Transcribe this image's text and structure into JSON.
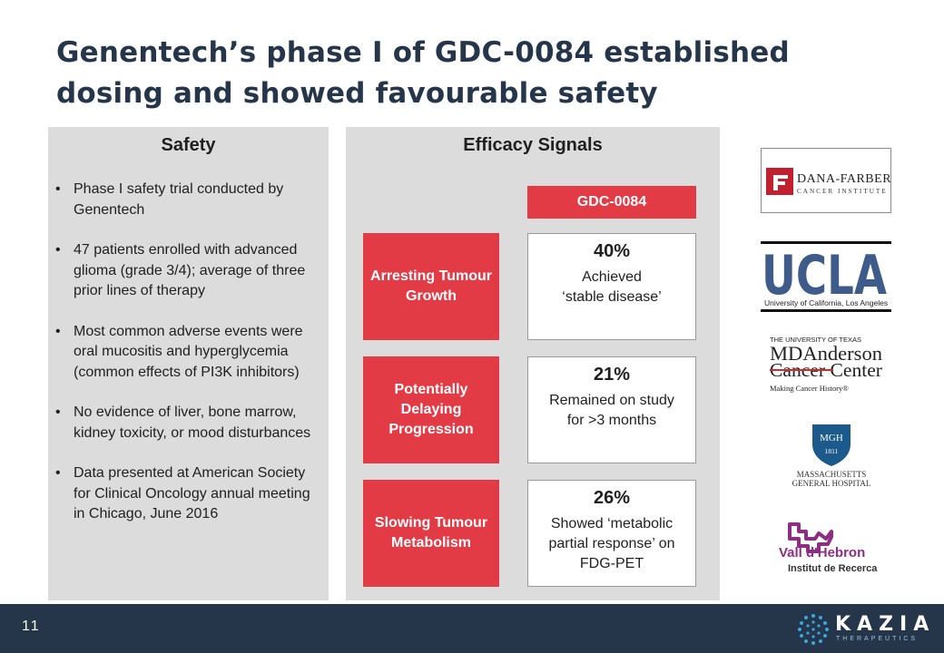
{
  "title": "Genentech’s phase I of GDC-0084 established dosing and showed favourable safety",
  "safety": {
    "heading": "Safety",
    "bullets": [
      "Phase I safety trial conducted by Genentech",
      "47 patients enrolled with advanced glioma (grade 3/4); average of three prior lines of therapy",
      "Most common adverse events were oral mucositis and hyperglycemia (common effects of PI3K inhibitors)",
      "No evidence of liver, bone marrow, kidney toxicity, or mood disturbances",
      "Data presented at American Society for Clinical Oncology annual meeting in Chicago, June 2016"
    ]
  },
  "efficacy": {
    "heading": "Efficacy Signals",
    "drug_label": "GDC-0084",
    "metrics": [
      {
        "label": "Arresting Tumour Growth",
        "value": "40%",
        "description": "Achieved\n‘stable disease’"
      },
      {
        "label": "Potentially Delaying Progression",
        "value": "21%",
        "description": "Remained on study\nfor >3 months"
      },
      {
        "label": "Slowing Tumour Metabolism",
        "value": "26%",
        "description": "Showed ‘metabolic\npartial response’ on\nFDG-PET"
      }
    ]
  },
  "logos": {
    "dana_farber": {
      "name": "DANA-FARBER",
      "sub": "CANCER INSTITUTE"
    },
    "ucla": {
      "name": "UCLA",
      "sub": "University of California, Los Angeles"
    },
    "md_anderson": {
      "top": "THE UNIVERSITY OF TEXAS",
      "name": "MDAnderson",
      "line2": "Cancer Center",
      "tagline": "Making Cancer History®"
    },
    "mgh": {
      "badge": "MGH",
      "year": "1811",
      "name1": "MASSACHUSETTS",
      "name2": "GENERAL HOSPITAL"
    },
    "vall_hebron": {
      "name": "Vall d'Hebron",
      "sub": "Institut de Recerca"
    }
  },
  "footer": {
    "page_number": "11",
    "brand": "KAZIA",
    "brand_sub": "THERAPEUTICS"
  },
  "colors": {
    "accent_red": "#e33b45",
    "navy": "#26364a",
    "panel_grey": "#dcdcdc"
  }
}
